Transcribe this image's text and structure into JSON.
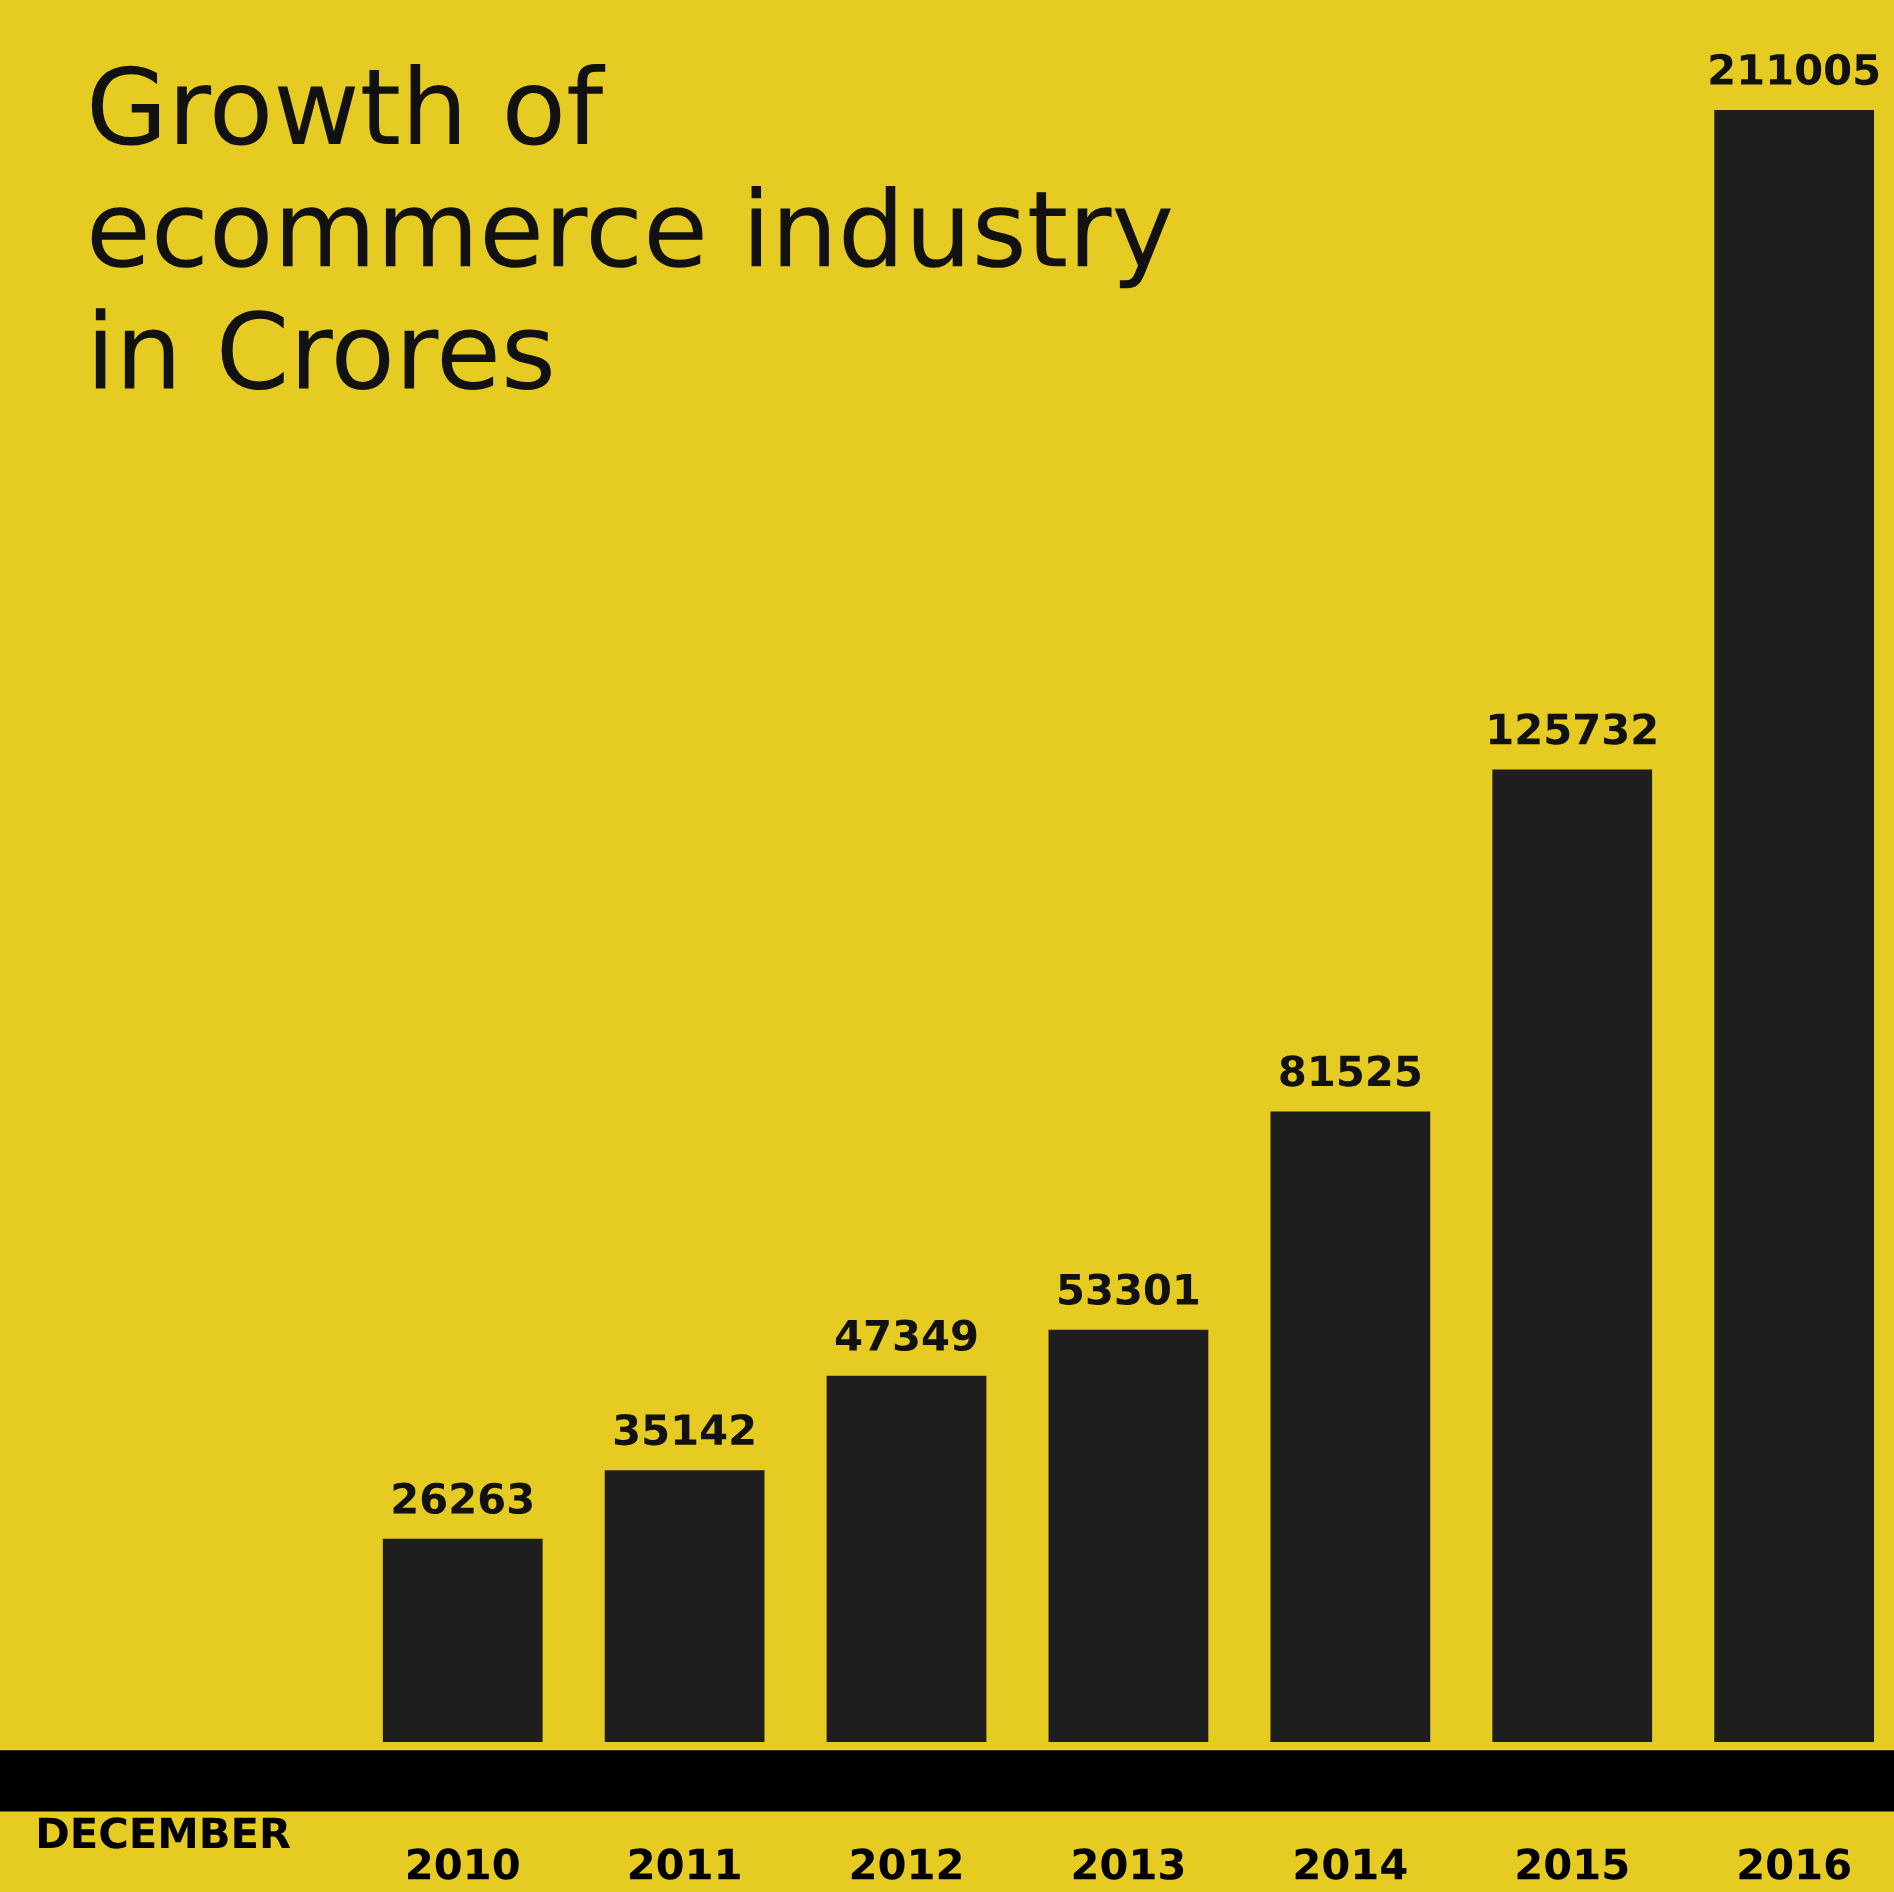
{
  "chart_data": {
    "type": "bar",
    "title": "Growth of\necommerce industry\nin Crores",
    "xlabel": "DECEMBER",
    "categories": [
      "2010",
      "2011",
      "2012",
      "2013",
      "2014",
      "2015",
      "2016"
    ],
    "values": [
      26263,
      35142,
      47349,
      53301,
      81525,
      125732,
      211005
    ],
    "color": "#1e1e1e",
    "data_labels": true,
    "grid": false,
    "legend": false
  }
}
